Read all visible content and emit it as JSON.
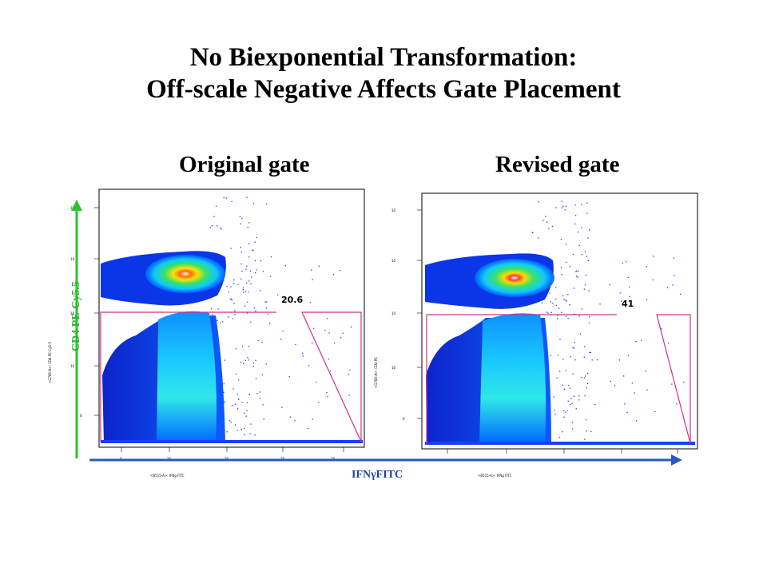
{
  "title_line1": "No Biexponential Transformation:",
  "title_line2": "Off-scale Negative Affects Gate Placement",
  "left_panel": {
    "heading": "Original gate",
    "gate_value": "20.6",
    "y_param_text": "<G780-A>: CD4 PE-Cy5-5",
    "x_param_text": "<B515-A>: IFNg FITC",
    "y_tick_labels": [
      "10",
      "10",
      "10",
      "10",
      "0"
    ],
    "x_tick_labels": [
      "0",
      "10",
      "10",
      "10",
      "10"
    ]
  },
  "right_panel": {
    "heading": "Revised gate",
    "gate_value": "41",
    "y_param_text": "<G780-A>: CD4 PE",
    "x_param_text": "<B515-A>: IFNg FITC",
    "y_tick_labels": [
      "10",
      "10",
      "10",
      "10",
      "0"
    ]
  },
  "y_axis_label": "CD4 PE-Cy5.5",
  "x_axis_label": "IFNγFITC",
  "colors": {
    "gate": "#d0308c",
    "y_arrow": "#2fc22f",
    "x_arrow": "#2a57c8",
    "density_low": "#0000cc",
    "density_high": "#ff6a00"
  }
}
